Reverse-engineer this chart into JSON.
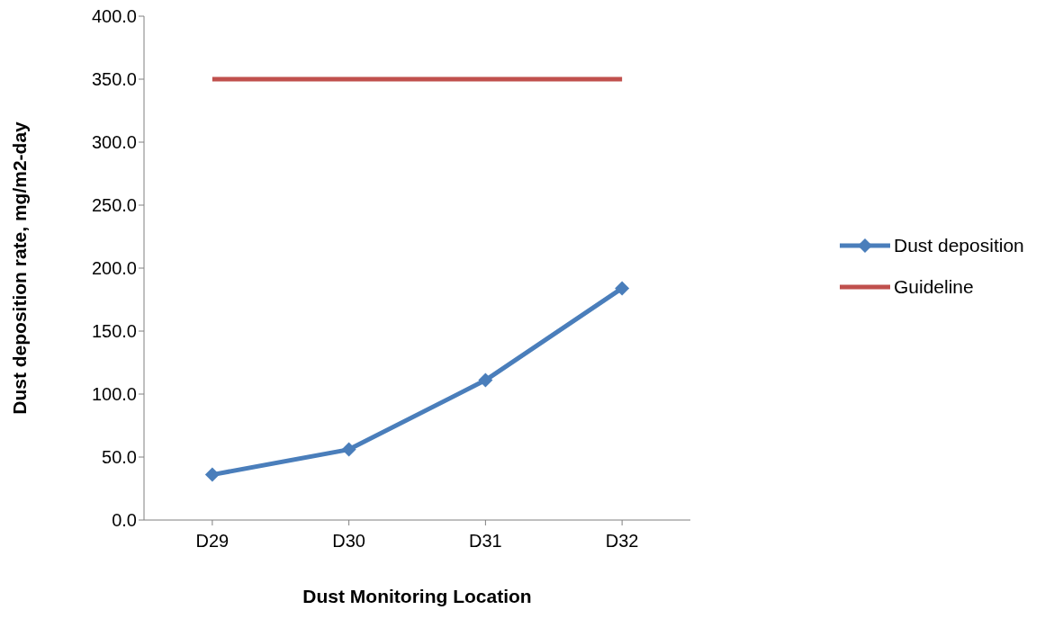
{
  "chart_data": {
    "type": "line",
    "xlabel": "Dust Monitoring Location",
    "ylabel": "Dust deposition rate, mg/m2-day",
    "categories": [
      "D29",
      "D30",
      "D31",
      "D32"
    ],
    "series": [
      {
        "name": "Dust deposition",
        "color": "#4a7ebb",
        "values": [
          36,
          56,
          111,
          184
        ],
        "marker": "diamond"
      },
      {
        "name": "Guideline",
        "color": "#c0504d",
        "values": [
          350,
          350,
          350,
          350
        ],
        "marker": "none"
      }
    ],
    "ylim": [
      0,
      400
    ],
    "yticks": [
      {
        "value": 0,
        "label": "0.0"
      },
      {
        "value": 50,
        "label": "50.0"
      },
      {
        "value": 100,
        "label": "100.0"
      },
      {
        "value": 150,
        "label": "150.0"
      },
      {
        "value": 200,
        "label": "200.0"
      },
      {
        "value": 250,
        "label": "250.0"
      },
      {
        "value": 300,
        "label": "300.0"
      },
      {
        "value": 350,
        "label": "350.0"
      },
      {
        "value": 400,
        "label": "400.0"
      }
    ],
    "grid": false,
    "legend": "right",
    "line_style": "solid"
  }
}
